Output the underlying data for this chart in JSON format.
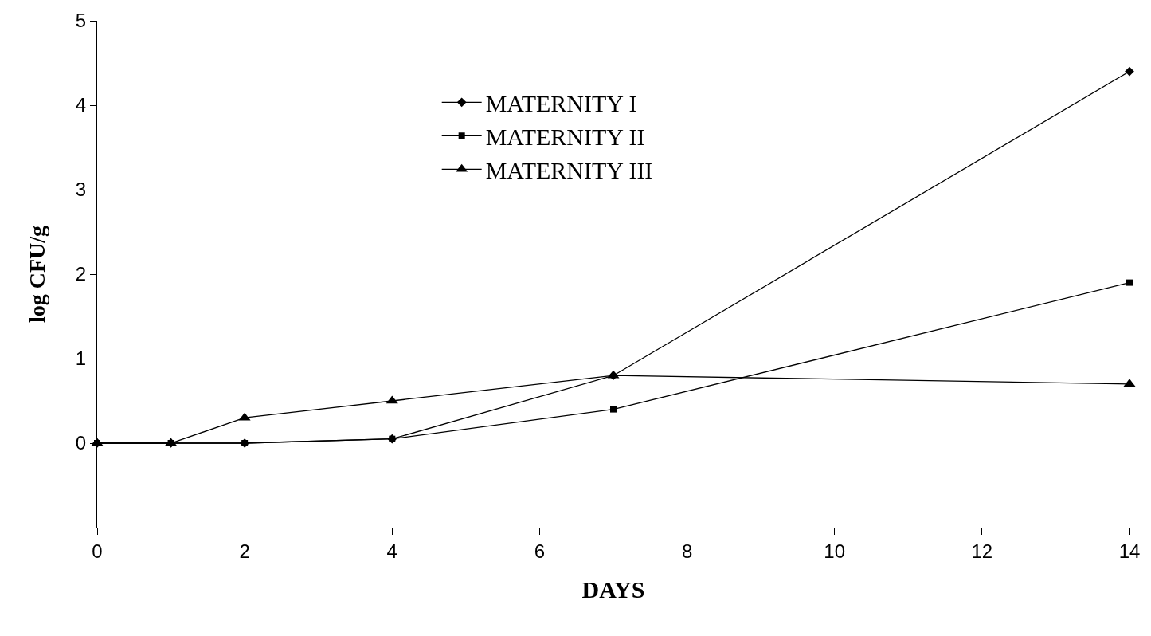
{
  "chart_data": {
    "type": "line",
    "xlabel": "DAYS",
    "ylabel": "log CFU/g",
    "x": [
      0,
      1,
      2,
      4,
      7,
      14
    ],
    "series": [
      {
        "name": "MATERNITY I",
        "color": "#000000",
        "marker": "diamond",
        "values": [
          0,
          0,
          0,
          0.05,
          0.8,
          4.4
        ]
      },
      {
        "name": "MATERNITY II",
        "color": "#000000",
        "marker": "square",
        "values": [
          0,
          0,
          0,
          0.05,
          0.4,
          1.9
        ]
      },
      {
        "name": "MATERNITY III",
        "color": "#000000",
        "marker": "triangle",
        "values": [
          0,
          0,
          0.3,
          0.5,
          0.8,
          0.7
        ]
      }
    ],
    "xlim": [
      0,
      14
    ],
    "xticks": [
      0,
      2,
      4,
      6,
      8,
      10,
      12,
      14
    ],
    "ylim": [
      -1,
      5
    ],
    "yticks": [
      0,
      1,
      2,
      3,
      4,
      5
    ],
    "grid": false,
    "legend": "top",
    "line_style": "solid"
  }
}
